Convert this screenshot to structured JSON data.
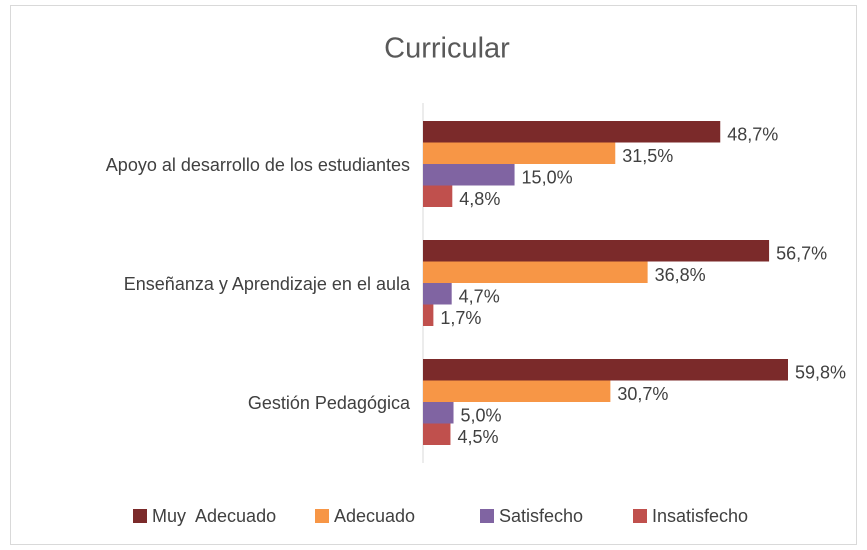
{
  "chart_data": {
    "type": "bar",
    "orientation": "horizontal",
    "title": "Curricular",
    "categories": [
      "Apoyo al desarrollo de los estudiantes",
      "Enseñanza y Aprendizaje en el aula",
      "Gestión Pedagógica"
    ],
    "series": [
      {
        "name": "Muy  Adecuado",
        "color": "#7b2a2a",
        "values": [
          48.7,
          56.7,
          59.8
        ],
        "value_labels": [
          "48,7%",
          "56,7%",
          "59,8%"
        ]
      },
      {
        "name": "Adecuado",
        "color": "#f79646",
        "values": [
          31.5,
          36.8,
          30.7
        ],
        "value_labels": [
          "31,5%",
          "36,8%",
          "30,7%"
        ]
      },
      {
        "name": "Satisfecho",
        "color": "#8064a2",
        "values": [
          15.0,
          4.7,
          5.0
        ],
        "value_labels": [
          "15,0%",
          "4,7%",
          "5,0%"
        ]
      },
      {
        "name": "Insatisfecho",
        "color": "#c0504d",
        "values": [
          4.8,
          1.7,
          4.5
        ],
        "value_labels": [
          "4,8%",
          "1,7%",
          "4,5%"
        ]
      }
    ],
    "legend": "bottom"
  }
}
